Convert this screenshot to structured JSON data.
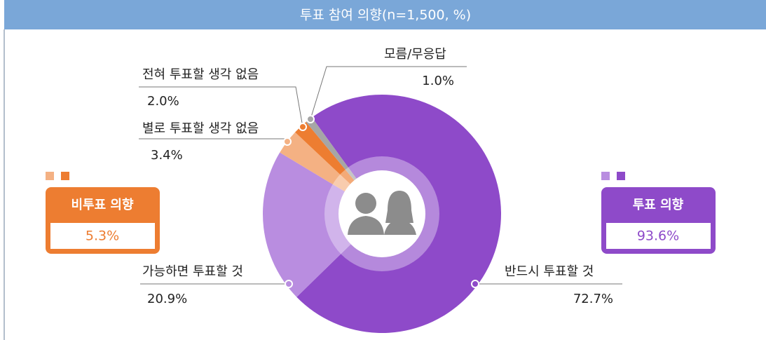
{
  "chart_data": {
    "type": "donut",
    "title": "투표 참여 의향(n=1,500, %)",
    "categories": [
      "반드시 투표할 것",
      "가능하면 투표할 것",
      "별로 투표할 생각 없음",
      "전혀 투표할 생각 없음",
      "모름/무응답"
    ],
    "values": [
      72.7,
      20.9,
      3.4,
      2.0,
      1.0
    ],
    "value_labels": [
      "72.7%",
      "20.9%",
      "3.4%",
      "2.0%",
      "1.0%"
    ],
    "colors": [
      "#8e4ac9",
      "#b98de0",
      "#f4b183",
      "#ed7d31",
      "#a6a6a6"
    ],
    "groups": [
      {
        "name": "비투표 의향",
        "value": 5.3,
        "value_label": "5.3%",
        "color": "#ed7d31",
        "legend_colors": [
          "#f4b183",
          "#ed7d31"
        ]
      },
      {
        "name": "투표 의향",
        "value": 93.6,
        "value_label": "93.6%",
        "color": "#8e4ac9",
        "legend_colors": [
          "#b98de0",
          "#8e4ac9"
        ]
      }
    ]
  }
}
